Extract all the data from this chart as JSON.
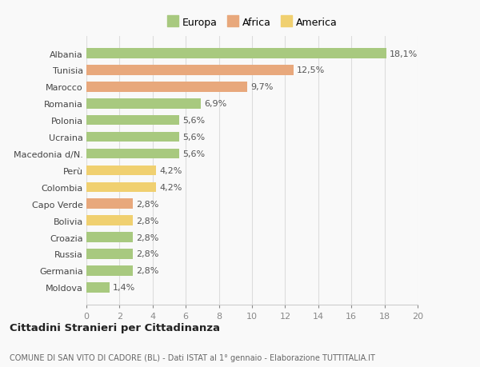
{
  "categories": [
    "Albania",
    "Tunisia",
    "Marocco",
    "Romania",
    "Polonia",
    "Ucraina",
    "Macedonia d/N.",
    "Perù",
    "Colombia",
    "Capo Verde",
    "Bolivia",
    "Croazia",
    "Russia",
    "Germania",
    "Moldova"
  ],
  "values": [
    18.1,
    12.5,
    9.7,
    6.9,
    5.6,
    5.6,
    5.6,
    4.2,
    4.2,
    2.8,
    2.8,
    2.8,
    2.8,
    2.8,
    1.4
  ],
  "labels": [
    "18,1%",
    "12,5%",
    "9,7%",
    "6,9%",
    "5,6%",
    "5,6%",
    "5,6%",
    "4,2%",
    "4,2%",
    "2,8%",
    "2,8%",
    "2,8%",
    "2,8%",
    "2,8%",
    "1,4%"
  ],
  "colors": [
    "#a8c97f",
    "#e8a87c",
    "#e8a87c",
    "#a8c97f",
    "#a8c97f",
    "#a8c97f",
    "#a8c97f",
    "#f0d070",
    "#f0d070",
    "#e8a87c",
    "#f0d070",
    "#a8c97f",
    "#a8c97f",
    "#a8c97f",
    "#a8c97f"
  ],
  "legend": [
    {
      "label": "Europa",
      "color": "#a8c97f"
    },
    {
      "label": "Africa",
      "color": "#e8a87c"
    },
    {
      "label": "America",
      "color": "#f0d070"
    }
  ],
  "xlim": [
    0,
    20
  ],
  "xticks": [
    0,
    2,
    4,
    6,
    8,
    10,
    12,
    14,
    16,
    18,
    20
  ],
  "title": "Cittadini Stranieri per Cittadinanza",
  "subtitle": "COMUNE DI SAN VITO DI CADORE (BL) - Dati ISTAT al 1° gennaio - Elaborazione TUTTITALIA.IT",
  "bg_color": "#f9f9f9",
  "grid_color": "#dddddd",
  "bar_height": 0.6,
  "label_fontsize": 8,
  "ytick_fontsize": 8,
  "xtick_fontsize": 8,
  "legend_fontsize": 9,
  "title_fontsize": 9.5,
  "subtitle_fontsize": 7
}
